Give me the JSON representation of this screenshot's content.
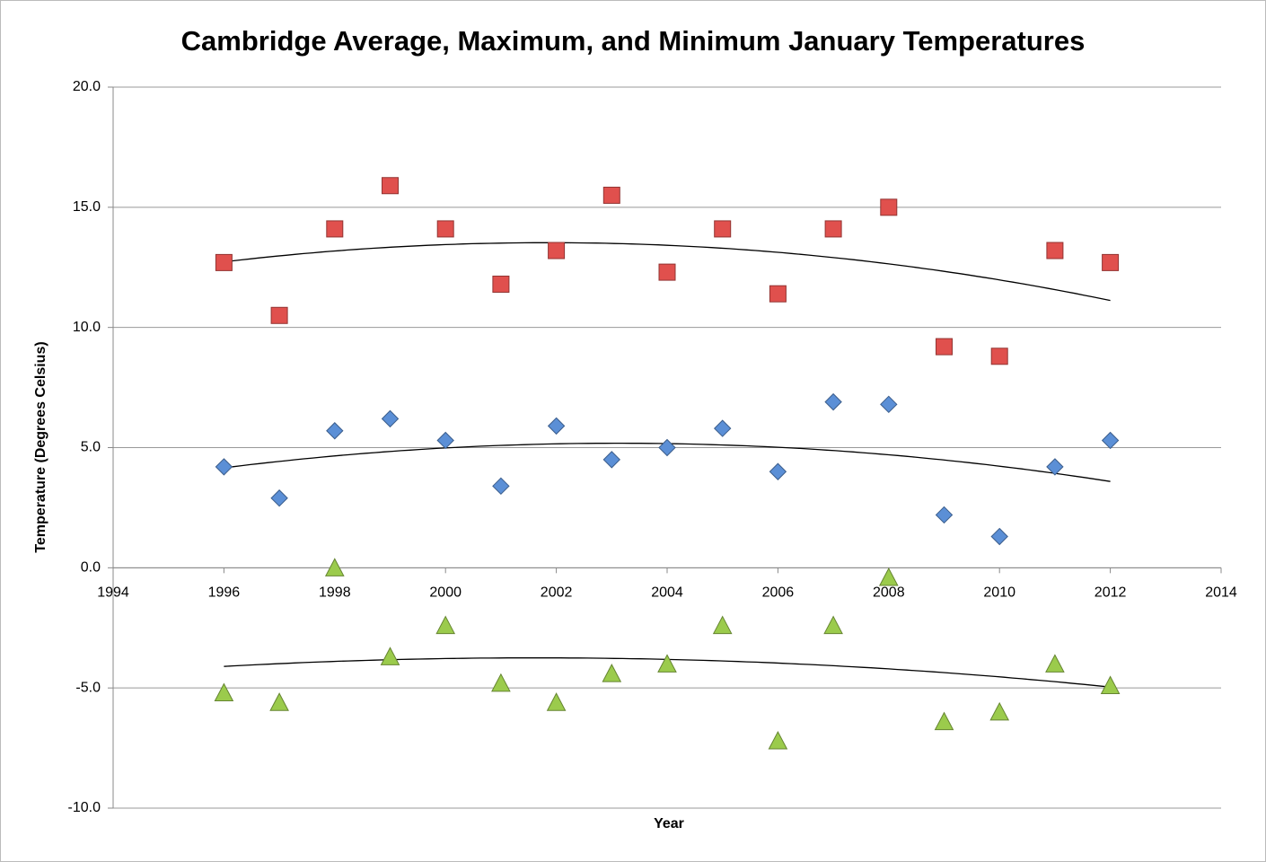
{
  "chart_data": {
    "type": "scatter",
    "title": "Cambridge Average, Maximum, and Minimum January Temperatures",
    "x_label": "Year",
    "y_label": "Temperature (Degrees Celsius)",
    "x": [
      1996,
      1997,
      1998,
      1999,
      2000,
      2001,
      2002,
      2003,
      2004,
      2005,
      2006,
      2007,
      2008,
      2009,
      2010,
      2011,
      2012
    ],
    "series": [
      {
        "color": "#e0504d",
        "marker": "square",
        "values": [
          12.7,
          10.5,
          14.1,
          15.9,
          14.1,
          11.8,
          13.2,
          15.5,
          12.3,
          14.1,
          11.4,
          14.1,
          15.0,
          9.2,
          8.8,
          13.2,
          12.7
        ]
      },
      {
        "color": "#5b8fd6",
        "marker": "diamond",
        "values": [
          4.2,
          2.9,
          5.7,
          6.2,
          5.3,
          3.4,
          5.9,
          4.5,
          5.0,
          5.8,
          4.0,
          6.9,
          6.8,
          2.2,
          1.3,
          4.2,
          5.3
        ]
      },
      {
        "color": "#9bcb4c",
        "marker": "triangle",
        "values": [
          -5.2,
          -5.6,
          0.0,
          -3.7,
          -2.4,
          -4.8,
          -5.6,
          -4.4,
          -4.0,
          -2.4,
          -7.2,
          -2.4,
          -0.4,
          -6.4,
          -6.0,
          -4.0,
          -4.9
        ]
      }
    ],
    "trendline": {
      "type": "polynomial",
      "order": 2
    },
    "xlim": [
      1994,
      2014
    ],
    "xticks": [
      1994,
      1996,
      1998,
      2000,
      2002,
      2004,
      2006,
      2008,
      2010,
      2012,
      2014
    ],
    "ylim": [
      -10,
      20
    ],
    "yticks": [
      {
        "value": -10,
        "label": "-10.0"
      },
      {
        "value": -5,
        "label": "-5.0"
      },
      {
        "value": 0,
        "label": "0.0"
      },
      {
        "value": 5,
        "label": "5.0"
      },
      {
        "value": 10,
        "label": "10.0"
      },
      {
        "value": 15,
        "label": "15.0"
      },
      {
        "value": 20,
        "label": "20.0"
      }
    ],
    "grid": true
  }
}
